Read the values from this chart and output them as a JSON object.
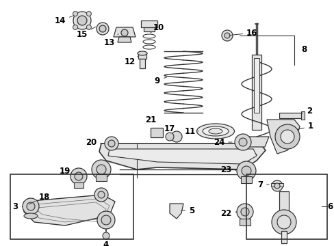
{
  "bg_color": "#ffffff",
  "line_color": "#333333",
  "label_fontsize": 8.5,
  "label_color": "#000000",
  "component_color": "#e8e8e8",
  "component_edge": "#333333"
}
